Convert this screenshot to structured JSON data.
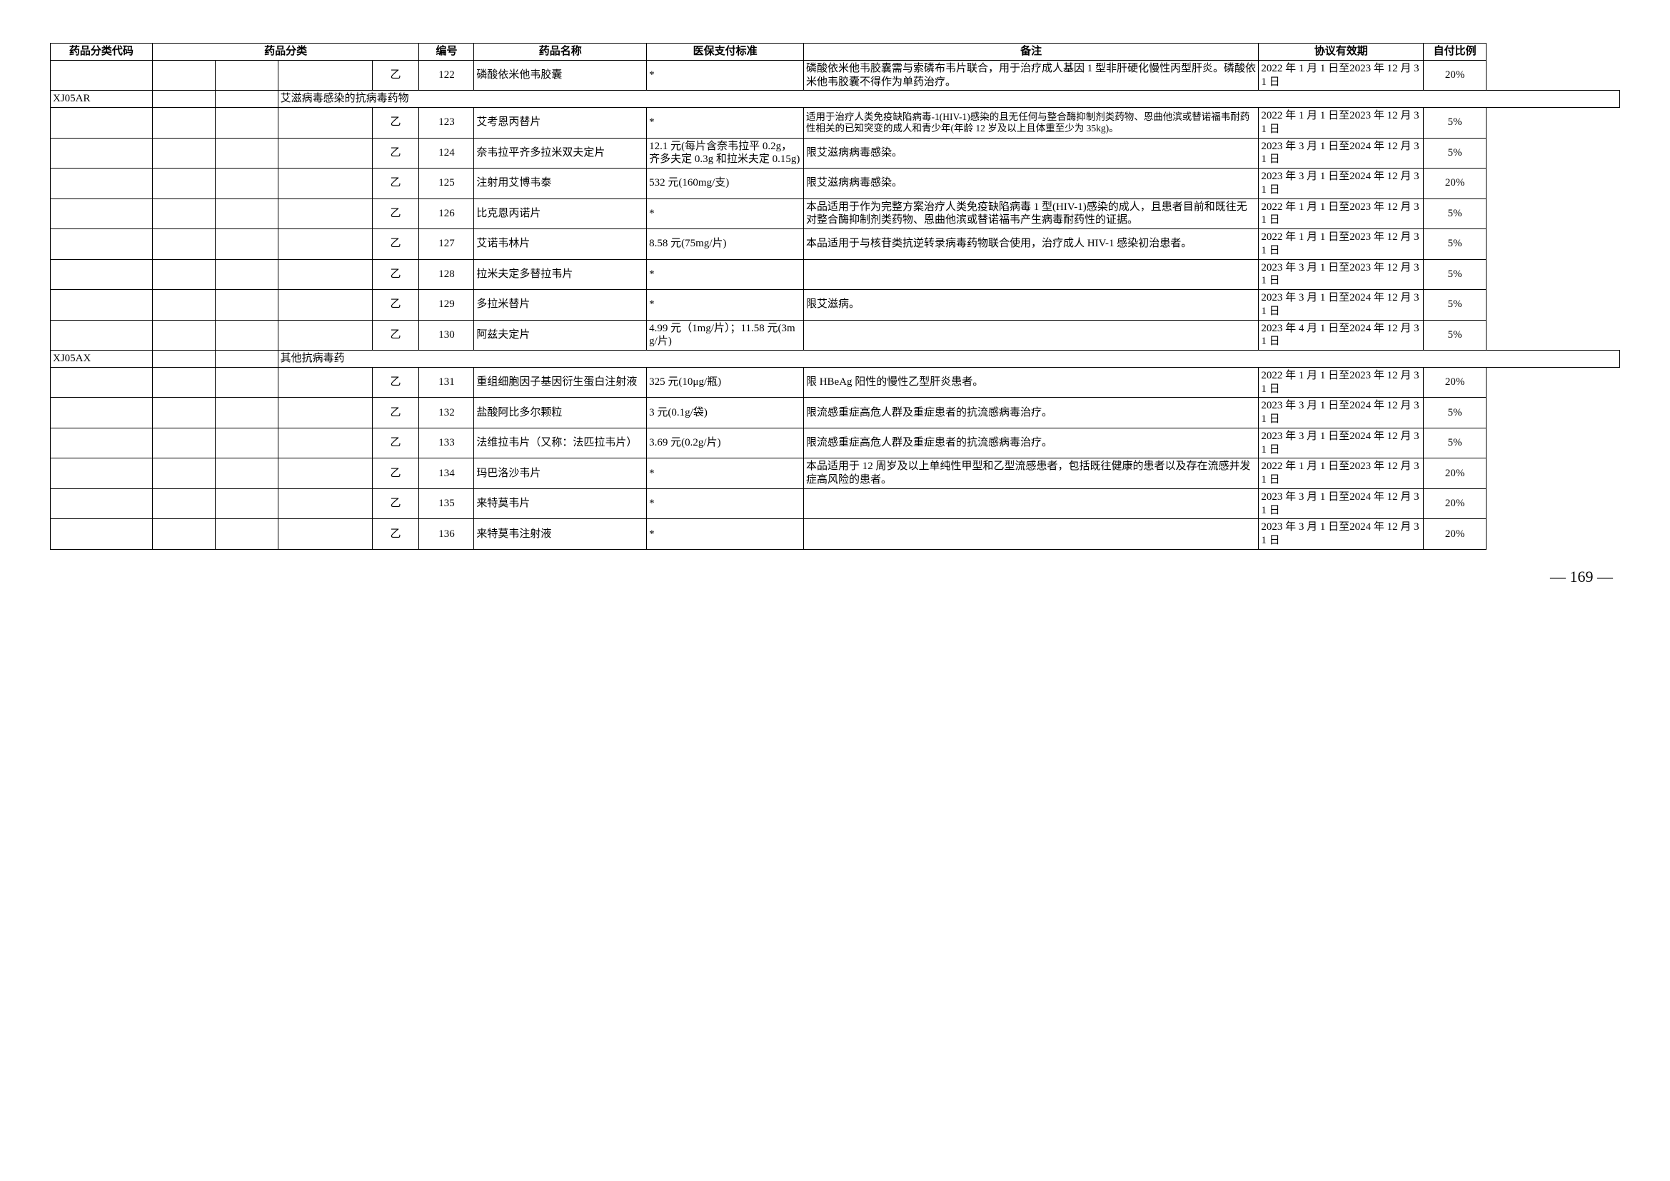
{
  "headers": {
    "code": "药品分类代码",
    "category": "药品分类",
    "num": "编号",
    "name": "药品名称",
    "standard": "医保支付标准",
    "note": "备注",
    "valid": "协议有效期",
    "pay": "自付比例"
  },
  "rows": [
    {
      "code": "",
      "cat1": "",
      "cat2": "",
      "cat3": "",
      "cat4": "乙",
      "num": "122",
      "name": "磷酸依米他韦胶囊",
      "std": "*",
      "note": "磷酸依米他韦胶囊需与索磷布韦片联合，用于治疗成人基因 1 型非肝硬化慢性丙型肝炎。磷酸依米他韦胶囊不得作为单药治疗。",
      "valid": "2022 年 1 月 1 日至2023 年 12 月 31 日",
      "pay": "20%",
      "note_small": false
    },
    {
      "code": "XJ05AR",
      "cat1": "",
      "cat2": "",
      "cat3": "艾滋病毒感染的抗病毒药物",
      "cat4": "",
      "num": "",
      "name": "",
      "std": "",
      "note": "",
      "valid": "",
      "pay": "",
      "span_cat": true
    },
    {
      "code": "",
      "cat1": "",
      "cat2": "",
      "cat3": "",
      "cat4": "乙",
      "num": "123",
      "name": "艾考恩丙替片",
      "std": "*",
      "note": "适用于治疗人类免疫缺陷病毒-1(HIV-1)感染的且无任何与整合酶抑制剂类药物、恩曲他滨或替诺福韦耐药性相关的已知突变的成人和青少年(年龄 12 岁及以上且体重至少为 35kg)。",
      "valid": "2022 年 1 月 1 日至2023 年 12 月 31 日",
      "pay": "5%",
      "note_small": true
    },
    {
      "code": "",
      "cat1": "",
      "cat2": "",
      "cat3": "",
      "cat4": "乙",
      "num": "124",
      "name": "奈韦拉平齐多拉米双夫定片",
      "std": "12.1 元(每片含奈韦拉平 0.2g，齐多夫定 0.3g 和拉米夫定 0.15g)",
      "note": "限艾滋病病毒感染。",
      "valid": "2023 年 3 月 1 日至2024 年 12 月 31 日",
      "pay": "5%",
      "note_small": false
    },
    {
      "code": "",
      "cat1": "",
      "cat2": "",
      "cat3": "",
      "cat4": "乙",
      "num": "125",
      "name": "注射用艾博韦泰",
      "std": "532 元(160mg/支)",
      "note": "限艾滋病病毒感染。",
      "valid": "2023 年 3 月 1 日至2024 年 12 月 31 日",
      "pay": "20%",
      "note_small": false
    },
    {
      "code": "",
      "cat1": "",
      "cat2": "",
      "cat3": "",
      "cat4": "乙",
      "num": "126",
      "name": "比克恩丙诺片",
      "std": "*",
      "note": "本品适用于作为完整方案治疗人类免疫缺陷病毒 1 型(HIV-1)感染的成人，且患者目前和既往无对整合酶抑制剂类药物、恩曲他滨或替诺福韦产生病毒耐药性的证据。",
      "valid": "2022 年 1 月 1 日至2023 年 12 月 31 日",
      "pay": "5%",
      "note_small": false
    },
    {
      "code": "",
      "cat1": "",
      "cat2": "",
      "cat3": "",
      "cat4": "乙",
      "num": "127",
      "name": "艾诺韦林片",
      "std": "8.58 元(75mg/片)",
      "note": "本品适用于与核苷类抗逆转录病毒药物联合使用，治疗成人 HIV-1 感染初治患者。",
      "valid": "2022 年 1 月 1 日至2023 年 12 月 31 日",
      "pay": "5%",
      "note_small": false
    },
    {
      "code": "",
      "cat1": "",
      "cat2": "",
      "cat3": "",
      "cat4": "乙",
      "num": "128",
      "name": "拉米夫定多替拉韦片",
      "std": "*",
      "note": "",
      "valid": "2023 年 3 月 1 日至2023 年 12 月 31 日",
      "pay": "5%",
      "note_small": false
    },
    {
      "code": "",
      "cat1": "",
      "cat2": "",
      "cat3": "",
      "cat4": "乙",
      "num": "129",
      "name": "多拉米替片",
      "std": "*",
      "note": "限艾滋病。",
      "valid": "2023 年 3 月 1 日至2024 年 12 月 31 日",
      "pay": "5%",
      "note_small": false
    },
    {
      "code": "",
      "cat1": "",
      "cat2": "",
      "cat3": "",
      "cat4": "乙",
      "num": "130",
      "name": "阿兹夫定片",
      "std": "4.99 元（1mg/片）；11.58 元(3mg/片)",
      "note": "",
      "valid": "2023 年 4 月 1 日至2024 年 12 月 31 日",
      "pay": "5%",
      "note_small": false
    },
    {
      "code": "XJ05AX",
      "cat1": "",
      "cat2": "",
      "cat3": "其他抗病毒药",
      "cat4": "",
      "num": "",
      "name": "",
      "std": "",
      "note": "",
      "valid": "",
      "pay": "",
      "span_cat": true
    },
    {
      "code": "",
      "cat1": "",
      "cat2": "",
      "cat3": "",
      "cat4": "乙",
      "num": "131",
      "name": "重组细胞因子基因衍生蛋白注射液",
      "std": "325 元(10μg/瓶)",
      "note": "限 HBeAg 阳性的慢性乙型肝炎患者。",
      "valid": "2022 年 1 月 1 日至2023 年 12 月 31 日",
      "pay": "20%",
      "note_small": false
    },
    {
      "code": "",
      "cat1": "",
      "cat2": "",
      "cat3": "",
      "cat4": "乙",
      "num": "132",
      "name": "盐酸阿比多尔颗粒",
      "std": "3 元(0.1g/袋)",
      "note": "限流感重症高危人群及重症患者的抗流感病毒治疗。",
      "valid": "2023 年 3 月 1 日至2024 年 12 月 31 日",
      "pay": "5%",
      "note_small": false
    },
    {
      "code": "",
      "cat1": "",
      "cat2": "",
      "cat3": "",
      "cat4": "乙",
      "num": "133",
      "name": "法维拉韦片（又称：法匹拉韦片）",
      "std": "3.69 元(0.2g/片)",
      "note": "限流感重症高危人群及重症患者的抗流感病毒治疗。",
      "valid": "2023 年 3 月 1 日至2024 年 12 月 31 日",
      "pay": "5%",
      "note_small": false
    },
    {
      "code": "",
      "cat1": "",
      "cat2": "",
      "cat3": "",
      "cat4": "乙",
      "num": "134",
      "name": "玛巴洛沙韦片",
      "std": "*",
      "note": "本品适用于 12 周岁及以上单纯性甲型和乙型流感患者，包括既往健康的患者以及存在流感并发症高风险的患者。",
      "valid": "2022 年 1 月 1 日至2023 年 12 月 31 日",
      "pay": "20%",
      "note_small": false
    },
    {
      "code": "",
      "cat1": "",
      "cat2": "",
      "cat3": "",
      "cat4": "乙",
      "num": "135",
      "name": "来特莫韦片",
      "std": "*",
      "note": "",
      "valid": "2023 年 3 月 1 日至2024 年 12 月 31 日",
      "pay": "20%",
      "note_small": false
    },
    {
      "code": "",
      "cat1": "",
      "cat2": "",
      "cat3": "",
      "cat4": "乙",
      "num": "136",
      "name": "来特莫韦注射液",
      "std": "*",
      "note": "",
      "valid": "2023 年 3 月 1 日至2024 年 12 月 31 日",
      "pay": "20%",
      "note_small": false
    }
  ],
  "pagenum": "— 169 —"
}
